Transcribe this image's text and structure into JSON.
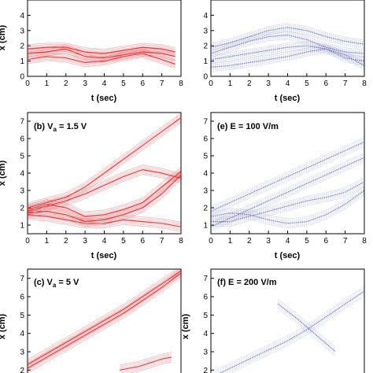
{
  "figure": {
    "panels": [
      {
        "id": "a",
        "title": "",
        "title_sub": "",
        "title_tail": "",
        "color": "#e8262b"
      },
      {
        "id": "b",
        "title": "(b) V",
        "title_sub": "a",
        "title_tail": " = 1.5 V",
        "color": "#e8262b"
      },
      {
        "id": "c",
        "title": "(c) V",
        "title_sub": "a",
        "title_tail": " = 5 V",
        "color": "#e8262b"
      },
      {
        "id": "d",
        "title": "",
        "title_sub": "",
        "title_tail": "",
        "color": "#5b62b8"
      },
      {
        "id": "e",
        "title": "(e) E = 100 V/m",
        "title_sub": "",
        "title_tail": "",
        "color": "#5b62b8"
      },
      {
        "id": "f",
        "title": "(f) E = 200 V/m",
        "title_sub": "",
        "title_tail": "",
        "color": "#5b62b8"
      }
    ]
  },
  "chart_data": [
    {
      "id": "a",
      "type": "line",
      "title": "",
      "xlabel": "t (sec)",
      "ylabel": "x (cm)",
      "xlim": [
        0,
        8
      ],
      "ylim": [
        0,
        5
      ],
      "xticks": [
        0,
        1,
        2,
        3,
        4,
        5,
        6,
        7,
        8
      ],
      "yticks": [
        0,
        1,
        2,
        3,
        4
      ],
      "series": [
        {
          "x": [
            0,
            1,
            2,
            3,
            4,
            5,
            6,
            7,
            7.7
          ],
          "y": [
            1.5,
            1.6,
            1.8,
            1.3,
            1.2,
            1.4,
            1.6,
            1.5,
            1.3
          ]
        },
        {
          "x": [
            0,
            1,
            2,
            3,
            4,
            5,
            6,
            7,
            7.7
          ],
          "y": [
            1.1,
            1.3,
            1.2,
            0.9,
            1.0,
            1.3,
            1.5,
            1.1,
            0.8
          ]
        },
        {
          "x": [
            0,
            1,
            2,
            3,
            4,
            5,
            6,
            7,
            7.7
          ],
          "y": [
            1.8,
            1.9,
            1.9,
            1.6,
            1.5,
            1.7,
            1.9,
            1.8,
            1.6
          ]
        }
      ]
    },
    {
      "id": "b",
      "type": "line",
      "title": "(b) Va = 1.5 V",
      "xlabel": "t (sec)",
      "ylabel": "x (cm)",
      "xlim": [
        0,
        8
      ],
      "ylim": [
        0.5,
        7.5
      ],
      "xticks": [
        0,
        1,
        2,
        3,
        4,
        5,
        6,
        7,
        8
      ],
      "yticks": [
        1,
        2,
        3,
        4,
        5,
        6,
        7
      ],
      "series": [
        {
          "x": [
            0,
            1,
            2,
            3,
            4,
            5,
            6,
            7,
            8
          ],
          "y": [
            2.0,
            2.3,
            2.6,
            3.2,
            4.0,
            4.8,
            5.6,
            6.4,
            7.2
          ]
        },
        {
          "x": [
            0,
            1,
            2,
            3,
            4,
            5,
            6,
            7,
            8
          ],
          "y": [
            1.8,
            2.1,
            2.4,
            2.8,
            3.3,
            3.8,
            4.2,
            4.0,
            3.7
          ]
        },
        {
          "x": [
            0,
            1,
            2,
            3,
            4,
            5,
            6,
            7,
            8
          ],
          "y": [
            1.7,
            1.8,
            1.6,
            1.2,
            1.3,
            1.6,
            2.0,
            2.8,
            3.9
          ]
        },
        {
          "x": [
            0,
            1,
            2,
            3,
            4,
            5,
            6,
            7,
            8
          ],
          "y": [
            1.9,
            2.2,
            2.0,
            1.5,
            1.6,
            1.9,
            2.3,
            3.2,
            4.1
          ]
        },
        {
          "x": [
            0,
            1,
            2,
            3,
            4,
            5,
            6,
            7,
            8
          ],
          "y": [
            1.6,
            1.5,
            1.3,
            1.1,
            1.1,
            1.3,
            1.2,
            1.1,
            0.9
          ]
        }
      ]
    },
    {
      "id": "c",
      "type": "line",
      "title": "(c) Va = 5 V",
      "xlabel": "",
      "ylabel": "x (cm)",
      "xlim": [
        0,
        8
      ],
      "ylim": [
        1.5,
        7.5
      ],
      "xticks": [],
      "yticks": [
        2,
        3,
        4,
        5,
        6,
        7
      ],
      "series": [
        {
          "x": [
            0,
            1,
            2,
            3,
            4,
            5,
            6,
            7,
            8
          ],
          "y": [
            2.1,
            2.7,
            3.3,
            3.9,
            4.5,
            5.1,
            5.8,
            6.5,
            7.3
          ]
        },
        {
          "x": [
            0,
            1,
            2,
            3,
            4,
            5,
            6,
            7,
            8
          ],
          "y": [
            2.3,
            2.9,
            3.5,
            4.1,
            4.7,
            5.3,
            6.0,
            6.7,
            7.4
          ]
        },
        {
          "x": [
            4.8,
            5.8,
            7.0,
            7.5
          ],
          "y": [
            2.0,
            2.2,
            2.6,
            2.7
          ]
        }
      ]
    },
    {
      "id": "d",
      "type": "line",
      "title": "",
      "xlabel": "t (sec)",
      "ylabel": "",
      "xlim": [
        0,
        8
      ],
      "ylim": [
        0,
        5
      ],
      "xticks": [
        0,
        1,
        2,
        3,
        4,
        5,
        6,
        7,
        8
      ],
      "yticks": [
        0,
        1,
        2,
        3,
        4
      ],
      "series": [
        {
          "x": [
            0,
            1,
            2,
            3,
            4,
            5,
            6,
            7,
            8
          ],
          "y": [
            1.9,
            2.2,
            2.6,
            3.0,
            3.2,
            3.0,
            2.6,
            2.3,
            2.1
          ]
        },
        {
          "x": [
            0,
            1,
            2,
            3,
            4,
            5,
            6,
            7,
            8
          ],
          "y": [
            1.5,
            1.9,
            2.3,
            2.6,
            2.7,
            2.4,
            1.9,
            1.6,
            1.5
          ]
        },
        {
          "x": [
            0,
            1,
            2,
            3,
            4,
            5,
            6,
            7,
            8
          ],
          "y": [
            1.1,
            1.3,
            1.5,
            1.7,
            1.9,
            2.0,
            1.8,
            1.2,
            1.0
          ]
        },
        {
          "x": [
            0,
            1,
            2,
            3,
            4,
            5,
            6,
            7,
            8
          ],
          "y": [
            0.6,
            0.7,
            0.9,
            1.1,
            1.3,
            1.6,
            1.8,
            1.4,
            0.7
          ]
        }
      ]
    },
    {
      "id": "e",
      "type": "line",
      "title": "(e) E = 100 V/m",
      "xlabel": "t (sec)",
      "ylabel": "",
      "xlim": [
        0,
        8
      ],
      "ylim": [
        0.5,
        7.5
      ],
      "xticks": [
        0,
        1,
        2,
        3,
        4,
        5,
        6,
        7,
        8
      ],
      "yticks": [
        1,
        2,
        3,
        4,
        5,
        6,
        7
      ],
      "series": [
        {
          "x": [
            0,
            1,
            2,
            3,
            4,
            5,
            6,
            7,
            8
          ],
          "y": [
            1.8,
            2.3,
            2.8,
            3.3,
            3.8,
            4.3,
            4.8,
            5.3,
            5.8
          ]
        },
        {
          "x": [
            0,
            1,
            2,
            3,
            4,
            5,
            6,
            7,
            8
          ],
          "y": [
            0.9,
            1.4,
            1.9,
            2.4,
            2.9,
            3.4,
            3.9,
            4.4,
            4.9
          ]
        },
        {
          "x": [
            0,
            1,
            2,
            3,
            4,
            5,
            6,
            7,
            8
          ],
          "y": [
            1.5,
            1.7,
            1.6,
            1.3,
            1.1,
            1.2,
            1.6,
            2.2,
            3.0
          ]
        },
        {
          "x": [
            0,
            1,
            2,
            3,
            4,
            5,
            6,
            7,
            8
          ],
          "y": [
            1.2,
            1.2,
            1.5,
            1.8,
            2.1,
            2.4,
            2.6,
            2.9,
            3.5
          ]
        }
      ]
    },
    {
      "id": "f",
      "type": "line",
      "title": "(f) E = 200 V/m",
      "xlabel": "",
      "ylabel": "x (cm)",
      "xlim": [
        0,
        8
      ],
      "ylim": [
        1.5,
        7.5
      ],
      "xticks": [],
      "yticks": [
        2,
        3,
        4,
        5,
        6,
        7
      ],
      "series": [
        {
          "x": [
            0,
            1,
            2,
            3,
            4,
            5,
            6,
            7,
            8
          ],
          "y": [
            1.6,
            2.1,
            2.6,
            3.1,
            3.6,
            4.2,
            4.9,
            5.6,
            6.3
          ]
        },
        {
          "x": [
            3.5,
            4.5,
            5.5,
            6.5
          ],
          "y": [
            5.6,
            4.8,
            3.9,
            3.0
          ]
        }
      ]
    }
  ]
}
